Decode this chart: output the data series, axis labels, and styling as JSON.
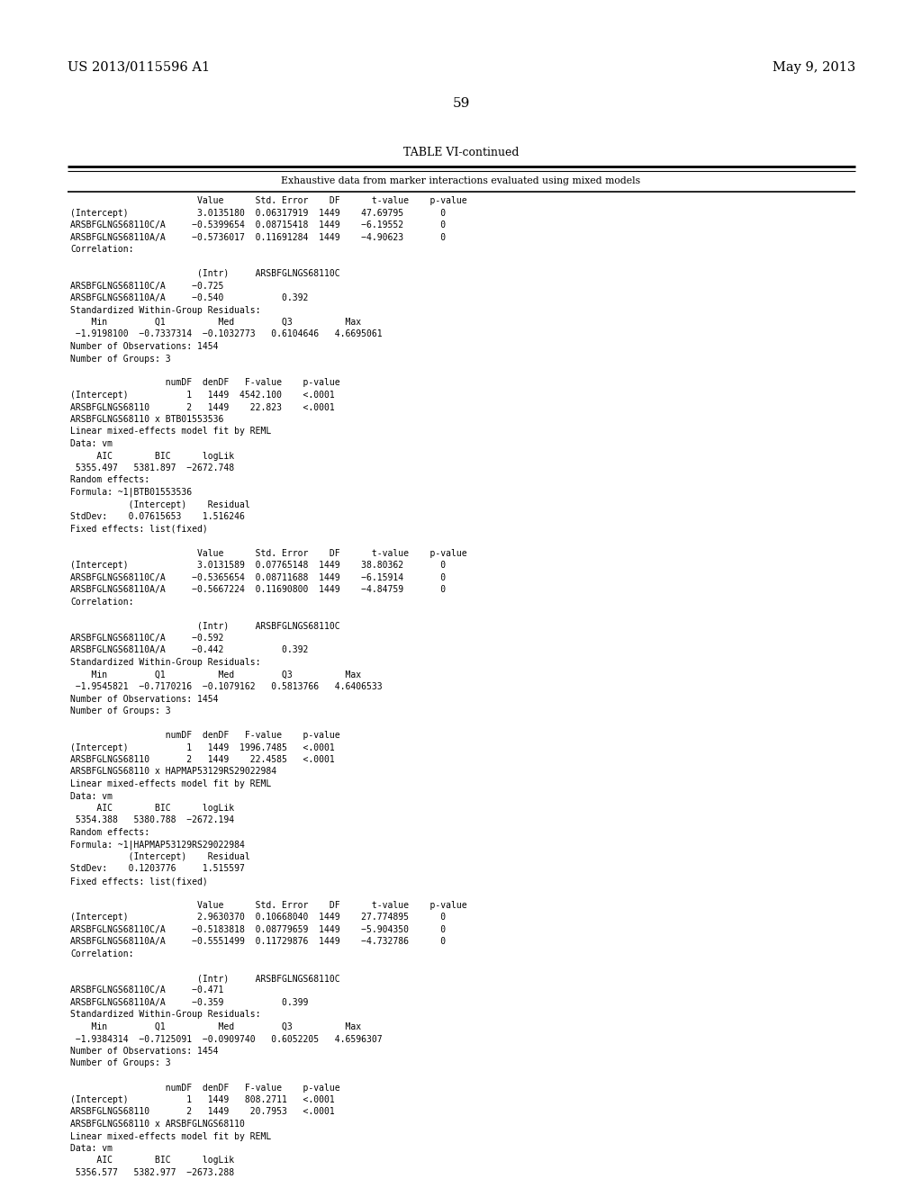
{
  "patent_left": "US 2013/0115596 A1",
  "patent_right": "May 9, 2013",
  "page_number": "59",
  "table_title": "TABLE VI-continued",
  "table_subtitle": "Exhaustive data from marker interactions evaluated using mixed models",
  "background_color": "#ffffff",
  "text_color": "#000000",
  "content": [
    "                        Value      Std. Error    DF      t-value    p-value",
    "(Intercept)             3.0135180  0.06317919  1449    47.69795       0",
    "ARSBFGLNGS68110C/A     −0.5399654  0.08715418  1449    −6.19552       0",
    "ARSBFGLNGS68110A/A     −0.5736017  0.11691284  1449    −4.90623       0",
    "Correlation:",
    "",
    "                        (Intr)     ARSBFGLNGS68110C",
    "ARSBFGLNGS68110C/A     −0.725",
    "ARSBFGLNGS68110A/A     −0.540           0.392",
    "Standardized Within-Group Residuals:",
    "    Min         Q1          Med         Q3          Max",
    " −1.9198100  −0.7337314  −0.1032773   0.6104646   4.6695061",
    "Number of Observations: 1454",
    "Number of Groups: 3",
    "",
    "                  numDF  denDF   F-value    p-value",
    "(Intercept)           1   1449  4542.100    <.0001",
    "ARSBFGLNGS68110       2   1449    22.823    <.0001",
    "ARSBFGLNGS68110 x BTB01553536",
    "Linear mixed-effects model fit by REML",
    "Data: vm",
    "     AIC        BIC      logLik",
    " 5355.497   5381.897  −2672.748",
    "Random effects:",
    "Formula: ~1|BTB01553536",
    "           (Intercept)    Residual",
    "StdDev:    0.07615653    1.516246",
    "Fixed effects: list(fixed)",
    "",
    "                        Value      Std. Error    DF      t-value    p-value",
    "(Intercept)             3.0131589  0.07765148  1449    38.80362       0",
    "ARSBFGLNGS68110C/A     −0.5365654  0.08711688  1449    −6.15914       0",
    "ARSBFGLNGS68110A/A     −0.5667224  0.11690800  1449    −4.84759       0",
    "Correlation:",
    "",
    "                        (Intr)     ARSBFGLNGS68110C",
    "ARSBFGLNGS68110C/A     −0.592",
    "ARSBFGLNGS68110A/A     −0.442           0.392",
    "Standardized Within-Group Residuals:",
    "    Min         Q1          Med         Q3          Max",
    " −1.9545821  −0.7170216  −0.1079162   0.5813766   4.6406533",
    "Number of Observations: 1454",
    "Number of Groups: 3",
    "",
    "                  numDF  denDF   F-value    p-value",
    "(Intercept)           1   1449  1996.7485   <.0001",
    "ARSBFGLNGS68110       2   1449    22.4585   <.0001",
    "ARSBFGLNGS68110 x HAPMAP53129RS29022984",
    "Linear mixed-effects model fit by REML",
    "Data: vm",
    "     AIC        BIC      logLik",
    " 5354.388   5380.788  −2672.194",
    "Random effects:",
    "Formula: ~1|HAPMAP53129RS29022984",
    "           (Intercept)    Residual",
    "StdDev:    0.1203776     1.515597",
    "Fixed effects: list(fixed)",
    "",
    "                        Value      Std. Error    DF      t-value    p-value",
    "(Intercept)             2.9630370  0.10668040  1449    27.774895      0",
    "ARSBFGLNGS68110C/A     −0.5183818  0.08779659  1449    −5.904350      0",
    "ARSBFGLNGS68110A/A     −0.5551499  0.11729876  1449    −4.732786      0",
    "Correlation:",
    "",
    "                        (Intr)     ARSBFGLNGS68110C",
    "ARSBFGLNGS68110C/A     −0.471",
    "ARSBFGLNGS68110A/A     −0.359           0.399",
    "Standardized Within-Group Residuals:",
    "    Min         Q1          Med         Q3          Max",
    " −1.9384314  −0.7125091  −0.0909740   0.6052205   4.6596307",
    "Number of Observations: 1454",
    "Number of Groups: 3",
    "",
    "                  numDF  denDF   F-value    p-value",
    "(Intercept)           1   1449   808.2711   <.0001",
    "ARSBFGLNGS68110       2   1449    20.7953   <.0001",
    "ARSBFGLNGS68110 x ARSBFGLNGS68110",
    "Linear mixed-effects model fit by REML",
    "Data: vm",
    "     AIC        BIC      logLik",
    " 5356.577   5382.977  −2673.288"
  ]
}
